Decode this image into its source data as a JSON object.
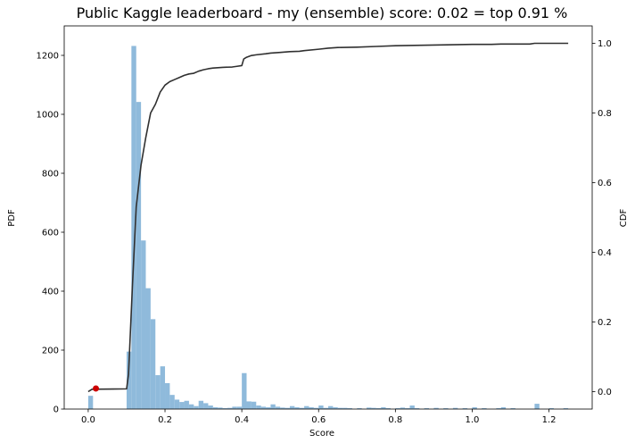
{
  "chart_data": {
    "type": "bar",
    "title": "Public Kaggle leaderboard - my (ensemble) score: 0.02 = top 0.91 %",
    "xlabel": "Score",
    "ylabel_left": "PDF",
    "ylabel_right": "CDF",
    "xlim": [
      -0.0625,
      1.3125
    ],
    "ylim_left": [
      0,
      1300
    ],
    "ylim_right": [
      -0.05,
      1.05
    ],
    "x_ticks": [
      0.0,
      0.2,
      0.4,
      0.6,
      0.8,
      1.0,
      1.2
    ],
    "x_tick_labels": [
      "0.0",
      "0.2",
      "0.4",
      "0.6",
      "0.8",
      "1.0",
      "1.2"
    ],
    "y_left_ticks": [
      0,
      200,
      400,
      600,
      800,
      1000,
      1200
    ],
    "y_left_tick_labels": [
      "0",
      "200",
      "400",
      "600",
      "800",
      "1000",
      "1200"
    ],
    "y_right_ticks": [
      0.0,
      0.2,
      0.4,
      0.6,
      0.8,
      1.0
    ],
    "y_right_tick_labels": [
      "0.0",
      "0.2",
      "0.4",
      "0.6",
      "0.8",
      "1.0"
    ],
    "grid": false,
    "histogram": {
      "name": "PDF",
      "color": "#8fbadb",
      "bin_width": 0.0125,
      "bins": [
        {
          "x": 0.0,
          "count": 45
        },
        {
          "x": 0.1,
          "count": 195
        },
        {
          "x": 0.1125,
          "count": 1232
        },
        {
          "x": 0.125,
          "count": 1042
        },
        {
          "x": 0.1375,
          "count": 572
        },
        {
          "x": 0.15,
          "count": 410
        },
        {
          "x": 0.1625,
          "count": 305
        },
        {
          "x": 0.175,
          "count": 115
        },
        {
          "x": 0.1875,
          "count": 145
        },
        {
          "x": 0.2,
          "count": 88
        },
        {
          "x": 0.2125,
          "count": 48
        },
        {
          "x": 0.225,
          "count": 32
        },
        {
          "x": 0.2375,
          "count": 24
        },
        {
          "x": 0.25,
          "count": 28
        },
        {
          "x": 0.2625,
          "count": 16
        },
        {
          "x": 0.275,
          "count": 10
        },
        {
          "x": 0.2875,
          "count": 28
        },
        {
          "x": 0.3,
          "count": 20
        },
        {
          "x": 0.3125,
          "count": 12
        },
        {
          "x": 0.325,
          "count": 6
        },
        {
          "x": 0.3375,
          "count": 5
        },
        {
          "x": 0.35,
          "count": 3
        },
        {
          "x": 0.3625,
          "count": 4
        },
        {
          "x": 0.375,
          "count": 8
        },
        {
          "x": 0.3875,
          "count": 8
        },
        {
          "x": 0.4,
          "count": 122
        },
        {
          "x": 0.4125,
          "count": 26
        },
        {
          "x": 0.425,
          "count": 25
        },
        {
          "x": 0.4375,
          "count": 12
        },
        {
          "x": 0.45,
          "count": 8
        },
        {
          "x": 0.4625,
          "count": 6
        },
        {
          "x": 0.475,
          "count": 16
        },
        {
          "x": 0.4875,
          "count": 8
        },
        {
          "x": 0.5,
          "count": 5
        },
        {
          "x": 0.5125,
          "count": 4
        },
        {
          "x": 0.525,
          "count": 10
        },
        {
          "x": 0.5375,
          "count": 6
        },
        {
          "x": 0.55,
          "count": 4
        },
        {
          "x": 0.5625,
          "count": 10
        },
        {
          "x": 0.575,
          "count": 6
        },
        {
          "x": 0.5875,
          "count": 4
        },
        {
          "x": 0.6,
          "count": 12
        },
        {
          "x": 0.6125,
          "count": 4
        },
        {
          "x": 0.625,
          "count": 10
        },
        {
          "x": 0.6375,
          "count": 6
        },
        {
          "x": 0.65,
          "count": 4
        },
        {
          "x": 0.6625,
          "count": 4
        },
        {
          "x": 0.675,
          "count": 3
        },
        {
          "x": 0.7,
          "count": 3
        },
        {
          "x": 0.725,
          "count": 5
        },
        {
          "x": 0.7375,
          "count": 4
        },
        {
          "x": 0.75,
          "count": 3
        },
        {
          "x": 0.7625,
          "count": 6
        },
        {
          "x": 0.775,
          "count": 3
        },
        {
          "x": 0.8,
          "count": 3
        },
        {
          "x": 0.8125,
          "count": 5
        },
        {
          "x": 0.825,
          "count": 3
        },
        {
          "x": 0.8375,
          "count": 12
        },
        {
          "x": 0.85,
          "count": 3
        },
        {
          "x": 0.875,
          "count": 3
        },
        {
          "x": 0.9,
          "count": 4
        },
        {
          "x": 0.925,
          "count": 3
        },
        {
          "x": 0.95,
          "count": 4
        },
        {
          "x": 0.975,
          "count": 3
        },
        {
          "x": 1.0,
          "count": 6
        },
        {
          "x": 1.025,
          "count": 3
        },
        {
          "x": 1.0625,
          "count": 3
        },
        {
          "x": 1.075,
          "count": 6
        },
        {
          "x": 1.1,
          "count": 3
        },
        {
          "x": 1.1625,
          "count": 18
        },
        {
          "x": 1.2,
          "count": 3
        },
        {
          "x": 1.2375,
          "count": 3
        }
      ]
    },
    "cdf_line": {
      "name": "CDF",
      "color": "#303030",
      "points": [
        [
          0.0,
          0.0
        ],
        [
          0.01,
          0.007
        ],
        [
          0.1,
          0.008
        ],
        [
          0.105,
          0.05
        ],
        [
          0.115,
          0.3
        ],
        [
          0.125,
          0.53
        ],
        [
          0.1375,
          0.65
        ],
        [
          0.15,
          0.73
        ],
        [
          0.1625,
          0.8
        ],
        [
          0.175,
          0.825
        ],
        [
          0.1875,
          0.86
        ],
        [
          0.2,
          0.88
        ],
        [
          0.2125,
          0.89
        ],
        [
          0.225,
          0.896
        ],
        [
          0.2375,
          0.902
        ],
        [
          0.25,
          0.908
        ],
        [
          0.2625,
          0.912
        ],
        [
          0.275,
          0.914
        ],
        [
          0.2875,
          0.92
        ],
        [
          0.3,
          0.924
        ],
        [
          0.3125,
          0.927
        ],
        [
          0.325,
          0.929
        ],
        [
          0.35,
          0.931
        ],
        [
          0.375,
          0.932
        ],
        [
          0.3875,
          0.934
        ],
        [
          0.4,
          0.936
        ],
        [
          0.405,
          0.955
        ],
        [
          0.4125,
          0.96
        ],
        [
          0.425,
          0.965
        ],
        [
          0.4375,
          0.967
        ],
        [
          0.4625,
          0.97
        ],
        [
          0.475,
          0.972
        ],
        [
          0.5,
          0.974
        ],
        [
          0.525,
          0.976
        ],
        [
          0.55,
          0.977
        ],
        [
          0.5625,
          0.979
        ],
        [
          0.6,
          0.983
        ],
        [
          0.625,
          0.986
        ],
        [
          0.65,
          0.988
        ],
        [
          0.7,
          0.989
        ],
        [
          0.75,
          0.991
        ],
        [
          0.8,
          0.993
        ],
        [
          0.85,
          0.994
        ],
        [
          0.9,
          0.995
        ],
        [
          0.95,
          0.996
        ],
        [
          1.0,
          0.997
        ],
        [
          1.05,
          0.997
        ],
        [
          1.075,
          0.998
        ],
        [
          1.15,
          0.998
        ],
        [
          1.1625,
          1.0
        ],
        [
          1.25,
          1.0
        ]
      ]
    },
    "marker": {
      "x": 0.02,
      "y": 0.0091,
      "color": "#cc0000"
    }
  }
}
